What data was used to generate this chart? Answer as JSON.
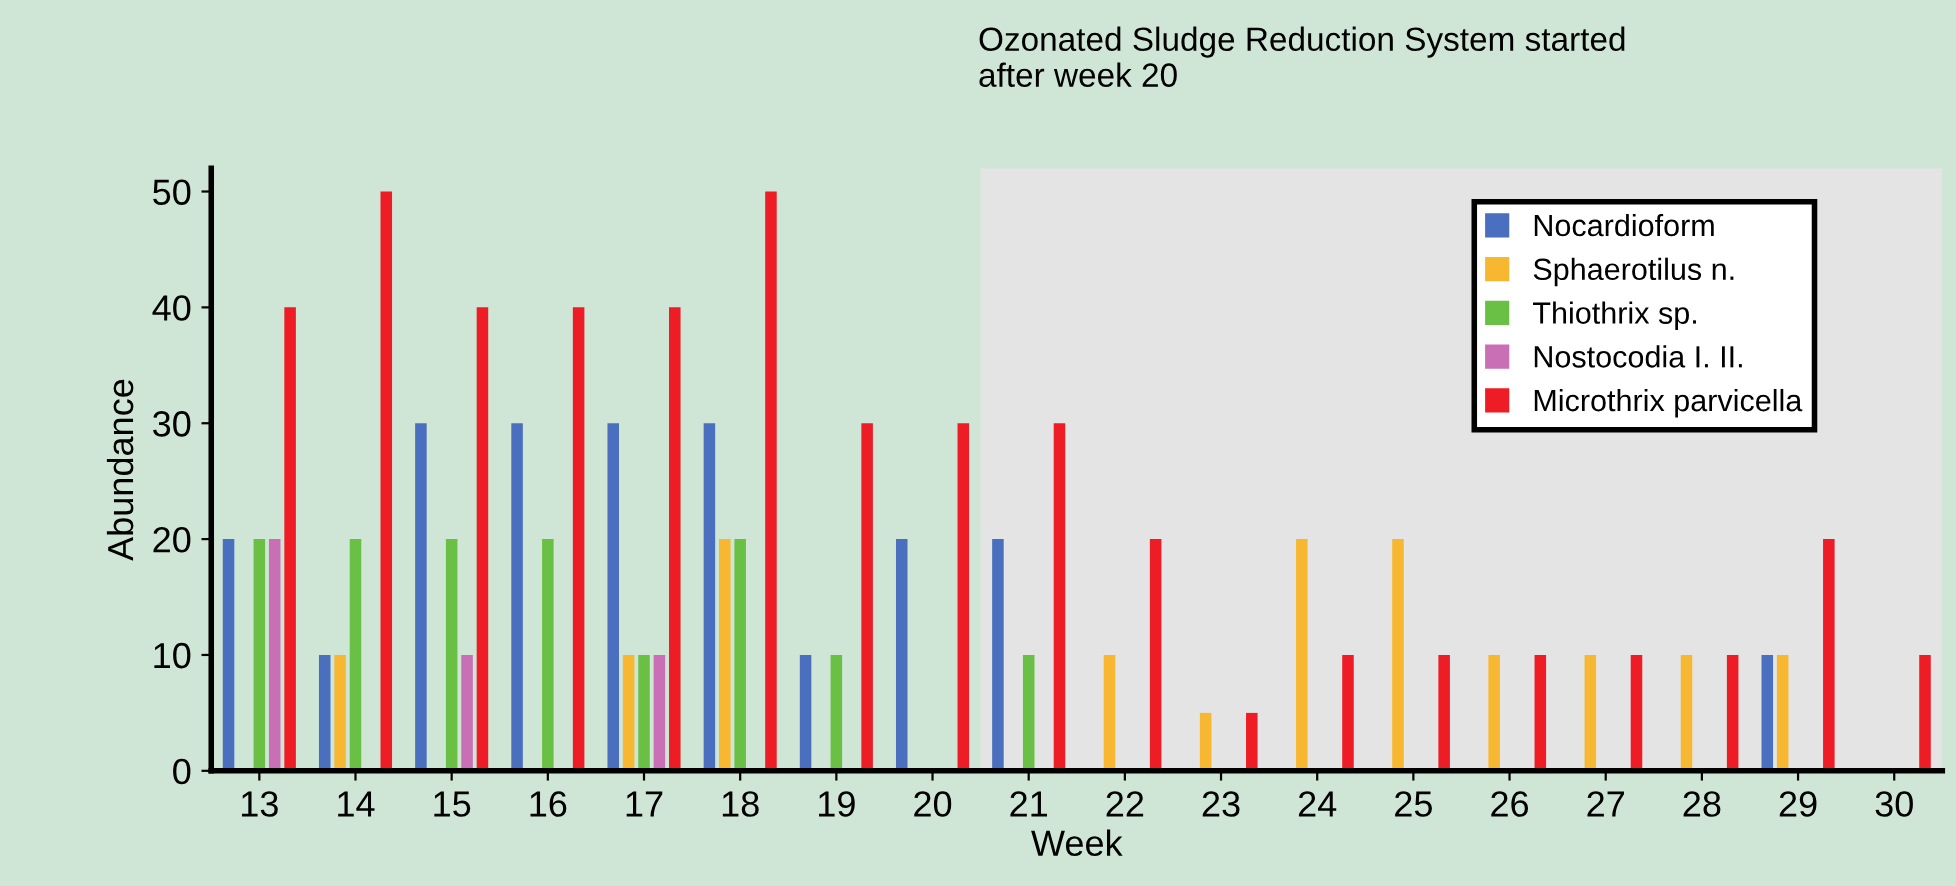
{
  "chart_data": {
    "type": "bar",
    "xlabel": "Week",
    "ylabel": "Abundance",
    "categories": [
      "13",
      "14",
      "15",
      "16",
      "17",
      "18",
      "19",
      "20",
      "21",
      "22",
      "23",
      "24",
      "25",
      "26",
      "27",
      "28",
      "29",
      "30"
    ],
    "series": [
      {
        "name": "Nocardioform",
        "color": "#4a6fbf",
        "values": [
          20,
          10,
          30,
          30,
          30,
          30,
          10,
          20,
          20,
          null,
          null,
          null,
          null,
          null,
          null,
          null,
          10,
          null
        ]
      },
      {
        "name": "Sphaerotilus n.",
        "color": "#f7b731",
        "values": [
          null,
          10,
          null,
          null,
          10,
          20,
          null,
          null,
          null,
          10,
          5,
          20,
          20,
          10,
          10,
          10,
          10,
          null
        ]
      },
      {
        "name": "Thiothrix sp.",
        "color": "#6abf45",
        "values": [
          20,
          20,
          20,
          20,
          10,
          20,
          10,
          null,
          10,
          null,
          null,
          null,
          null,
          null,
          null,
          null,
          null,
          null
        ]
      },
      {
        "name": "Nostocodia I. II.",
        "color": "#c86fb6",
        "values": [
          20,
          null,
          10,
          null,
          10,
          null,
          null,
          null,
          null,
          null,
          null,
          null,
          null,
          null,
          null,
          null,
          null,
          null
        ]
      },
      {
        "name": "Microthrix parvicella",
        "color": "#ee1c25",
        "values": [
          40,
          50,
          40,
          40,
          40,
          50,
          30,
          30,
          30,
          20,
          5,
          10,
          10,
          10,
          10,
          10,
          20,
          10
        ]
      }
    ],
    "ylim": [
      0,
      52
    ],
    "yticks": [
      0,
      10,
      20,
      30,
      40,
      50
    ],
    "grid": false,
    "legend": "top right",
    "bands": [
      {
        "axis": "x",
        "from": "21",
        "to": "30",
        "color": "#e4e4e4"
      }
    ],
    "annotations": [
      "Ozonated Sludge Reduction System started\nafter week 20"
    ]
  }
}
